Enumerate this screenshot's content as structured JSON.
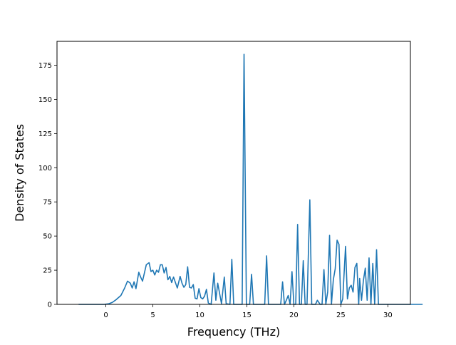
{
  "chart_data": {
    "type": "line",
    "xlabel": "Frequency (THz)",
    "ylabel": "Density of States",
    "xlim": [
      -5.2,
      32.4
    ],
    "ylim": [
      0,
      192.5
    ],
    "xticks": [
      0,
      5,
      10,
      15,
      20,
      25,
      30
    ],
    "yticks": [
      0,
      25,
      50,
      75,
      100,
      125,
      150,
      175
    ],
    "grid": false,
    "legend": "none",
    "series": [
      {
        "color": "#1f77b4",
        "points": [
          [
            -2.9,
            0
          ],
          [
            -0.2,
            0
          ],
          [
            0.3,
            0.4
          ],
          [
            0.7,
            1.5
          ],
          [
            1.1,
            3.5
          ],
          [
            1.6,
            6.5
          ],
          [
            2.0,
            12
          ],
          [
            2.3,
            17
          ],
          [
            2.6,
            15.5
          ],
          [
            2.8,
            12
          ],
          [
            3.0,
            16.5
          ],
          [
            3.2,
            11.5
          ],
          [
            3.5,
            23.5
          ],
          [
            3.7,
            20
          ],
          [
            3.9,
            17
          ],
          [
            4.1,
            23
          ],
          [
            4.3,
            29
          ],
          [
            4.6,
            30.5
          ],
          [
            4.8,
            24
          ],
          [
            5.0,
            25
          ],
          [
            5.2,
            21.5
          ],
          [
            5.4,
            25
          ],
          [
            5.6,
            23.5
          ],
          [
            5.8,
            29
          ],
          [
            6.0,
            29
          ],
          [
            6.2,
            23
          ],
          [
            6.4,
            27
          ],
          [
            6.6,
            18
          ],
          [
            6.8,
            20.5
          ],
          [
            7.0,
            16
          ],
          [
            7.2,
            20
          ],
          [
            7.4,
            16
          ],
          [
            7.6,
            12
          ],
          [
            7.9,
            20.5
          ],
          [
            8.1,
            15.5
          ],
          [
            8.3,
            12.5
          ],
          [
            8.5,
            14.5
          ],
          [
            8.7,
            27.5
          ],
          [
            8.9,
            12.5
          ],
          [
            9.1,
            12
          ],
          [
            9.3,
            14.5
          ],
          [
            9.5,
            4.5
          ],
          [
            9.7,
            4
          ],
          [
            9.9,
            11.5
          ],
          [
            10.1,
            5
          ],
          [
            10.3,
            4
          ],
          [
            10.5,
            6
          ],
          [
            10.7,
            11
          ],
          [
            10.9,
            1
          ],
          [
            11.2,
            0
          ],
          [
            11.5,
            23
          ],
          [
            11.7,
            3
          ],
          [
            11.9,
            15.5
          ],
          [
            12.1,
            8
          ],
          [
            12.3,
            0.5
          ],
          [
            12.6,
            20
          ],
          [
            12.8,
            0.5
          ],
          [
            13.2,
            0
          ],
          [
            13.4,
            33
          ],
          [
            13.6,
            0
          ],
          [
            14.2,
            0
          ],
          [
            14.5,
            0
          ],
          [
            14.7,
            183
          ],
          [
            14.95,
            0
          ],
          [
            15.3,
            0
          ],
          [
            15.5,
            22
          ],
          [
            15.7,
            0
          ],
          [
            16.7,
            0
          ],
          [
            16.9,
            0
          ],
          [
            17.1,
            35.5
          ],
          [
            17.3,
            0
          ],
          [
            18.6,
            0
          ],
          [
            18.8,
            16.5
          ],
          [
            19.0,
            0
          ],
          [
            19.2,
            3
          ],
          [
            19.4,
            6.5
          ],
          [
            19.6,
            0
          ],
          [
            19.8,
            24
          ],
          [
            20.0,
            0
          ],
          [
            20.2,
            0
          ],
          [
            20.4,
            58.5
          ],
          [
            20.6,
            0
          ],
          [
            20.8,
            0
          ],
          [
            21.0,
            32
          ],
          [
            21.2,
            0
          ],
          [
            21.4,
            0
          ],
          [
            21.7,
            76.5
          ],
          [
            21.9,
            0
          ],
          [
            22.3,
            0
          ],
          [
            22.5,
            3
          ],
          [
            22.8,
            0
          ],
          [
            23.0,
            0
          ],
          [
            23.2,
            25.5
          ],
          [
            23.4,
            0
          ],
          [
            23.6,
            9
          ],
          [
            23.8,
            50.5
          ],
          [
            24.0,
            0
          ],
          [
            24.2,
            18
          ],
          [
            24.4,
            26
          ],
          [
            24.6,
            47
          ],
          [
            24.8,
            44
          ],
          [
            25.0,
            0
          ],
          [
            25.2,
            4
          ],
          [
            25.5,
            42.5
          ],
          [
            25.7,
            4
          ],
          [
            25.9,
            12
          ],
          [
            26.1,
            14
          ],
          [
            26.3,
            9
          ],
          [
            26.5,
            27
          ],
          [
            26.7,
            30
          ],
          [
            26.9,
            0
          ],
          [
            27.0,
            19
          ],
          [
            27.2,
            3
          ],
          [
            27.4,
            17.5
          ],
          [
            27.6,
            26.5
          ],
          [
            27.8,
            3
          ],
          [
            28.0,
            34
          ],
          [
            28.2,
            0
          ],
          [
            28.4,
            30
          ],
          [
            28.6,
            0
          ],
          [
            28.8,
            40
          ],
          [
            29.0,
            0
          ],
          [
            30.6,
            0
          ],
          [
            33.7,
            0
          ]
        ]
      }
    ]
  }
}
